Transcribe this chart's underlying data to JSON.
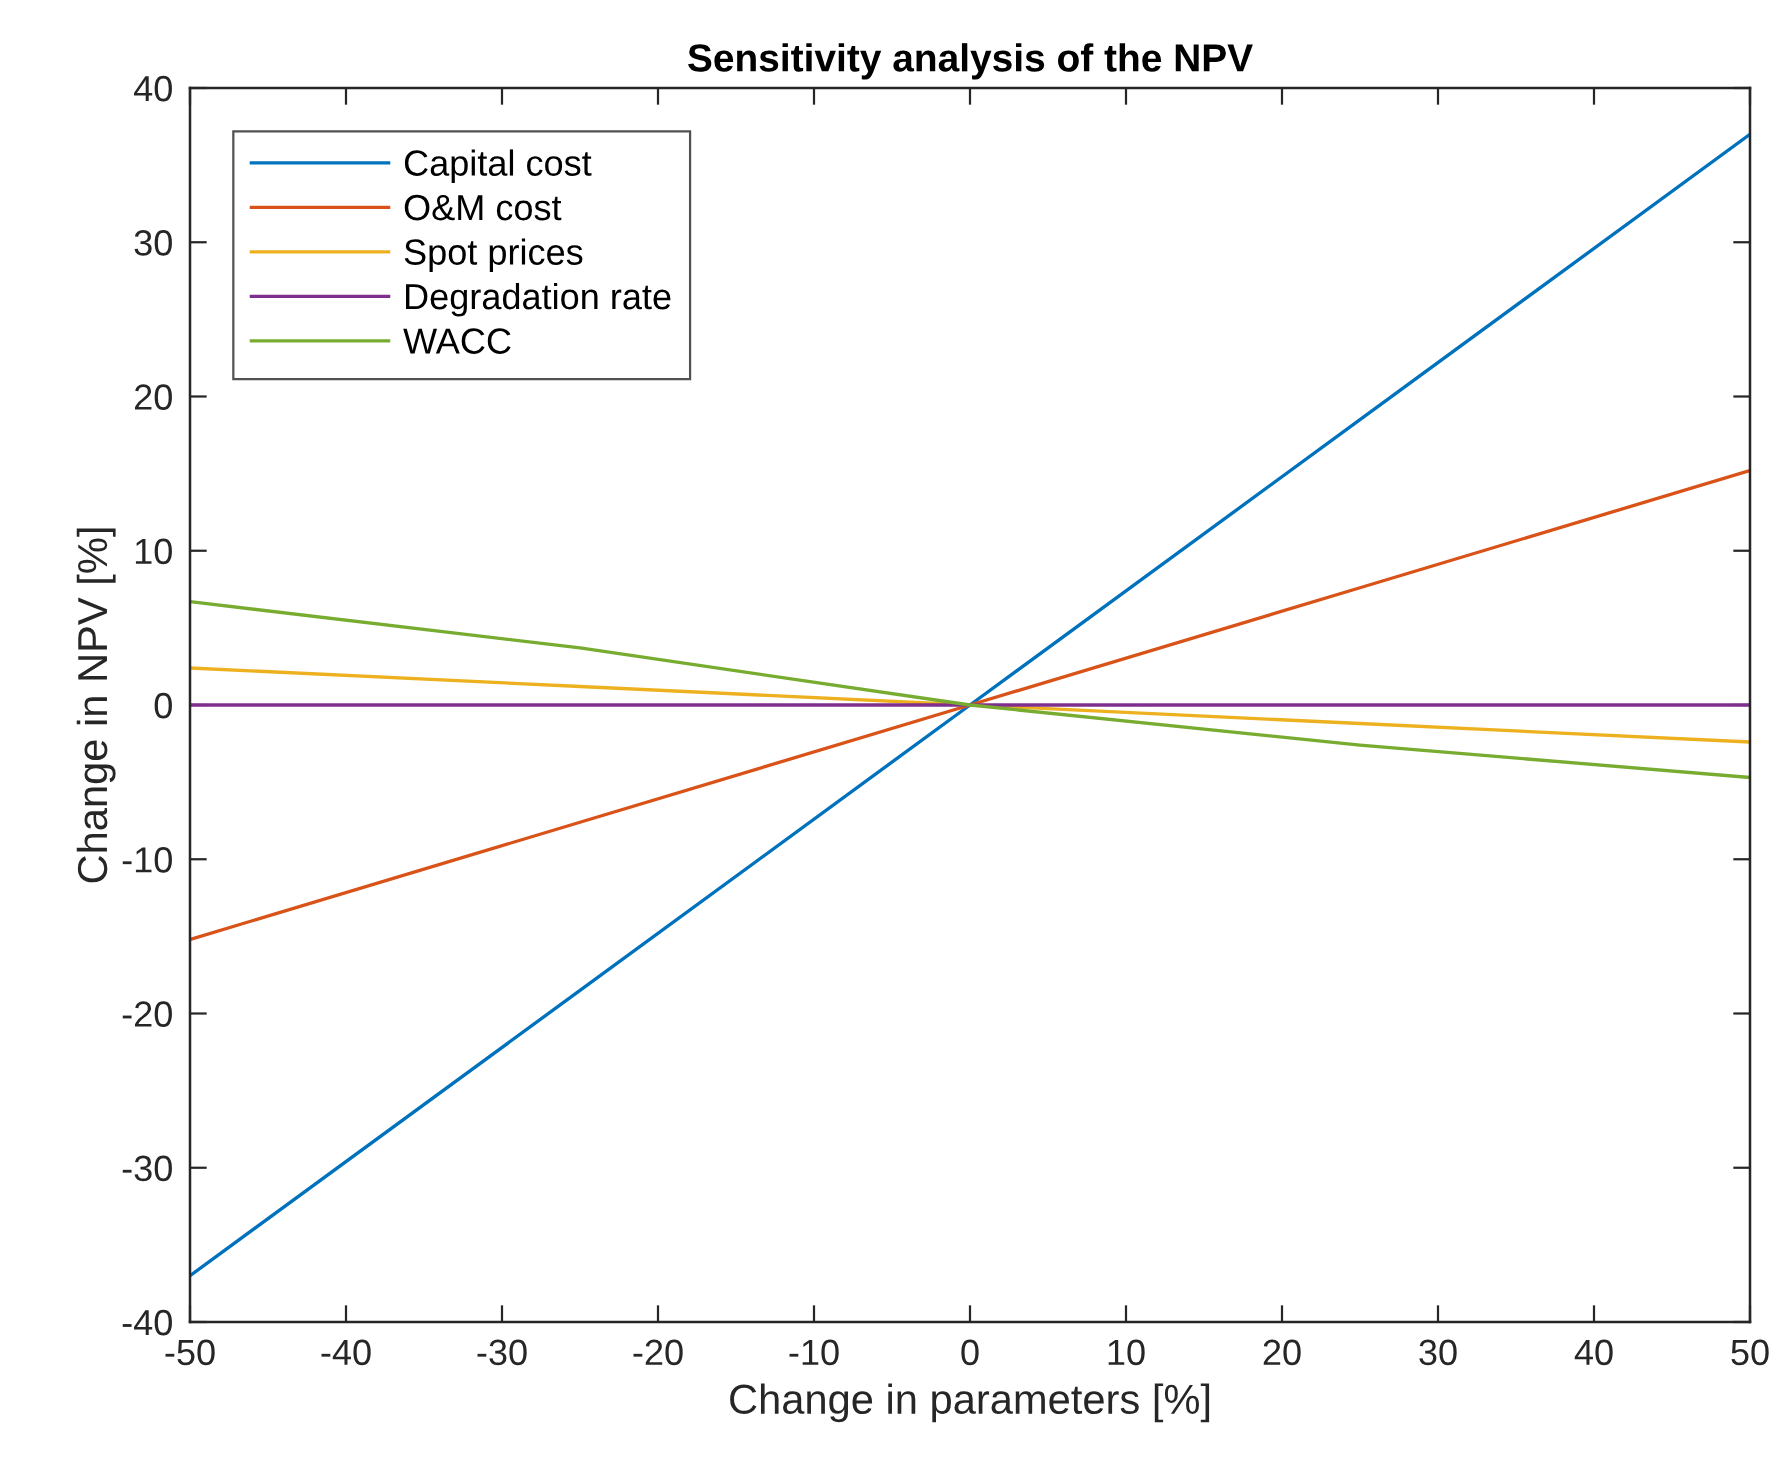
{
  "chart_data": {
    "type": "line",
    "title": "Sensitivity analysis of the NPV",
    "xlabel": "Change in parameters [%]",
    "ylabel": "Change in NPV [%]",
    "x": [
      -50,
      -25,
      0,
      25,
      50
    ],
    "series": [
      {
        "name": "Capital cost",
        "color": "#0072bd",
        "values": [
          -37,
          -18.5,
          0,
          18.5,
          37
        ]
      },
      {
        "name": "O&M cost",
        "color": "#d95319",
        "values": [
          -15.2,
          -7.6,
          0,
          7.6,
          15.2
        ]
      },
      {
        "name": "Spot prices",
        "color": "#edb120",
        "values": [
          2.4,
          1.2,
          0,
          -1.2,
          -2.4
        ]
      },
      {
        "name": "Degradation rate",
        "color": "#7e2f8e",
        "values": [
          0,
          0,
          0,
          0,
          0
        ]
      },
      {
        "name": "WACC",
        "color": "#77ac30",
        "values": [
          6.7,
          3.7,
          0,
          -2.6,
          -4.7
        ]
      }
    ],
    "xlim": [
      -50,
      50
    ],
    "ylim": [
      -40,
      40
    ],
    "xticks": [
      -50,
      -40,
      -30,
      -20,
      -10,
      0,
      10,
      20,
      30,
      40,
      50
    ],
    "yticks": [
      -40,
      -30,
      -20,
      -10,
      0,
      10,
      20,
      30,
      40
    ],
    "grid": false,
    "legend": "top left",
    "marker": "none",
    "line_style": "solid"
  }
}
